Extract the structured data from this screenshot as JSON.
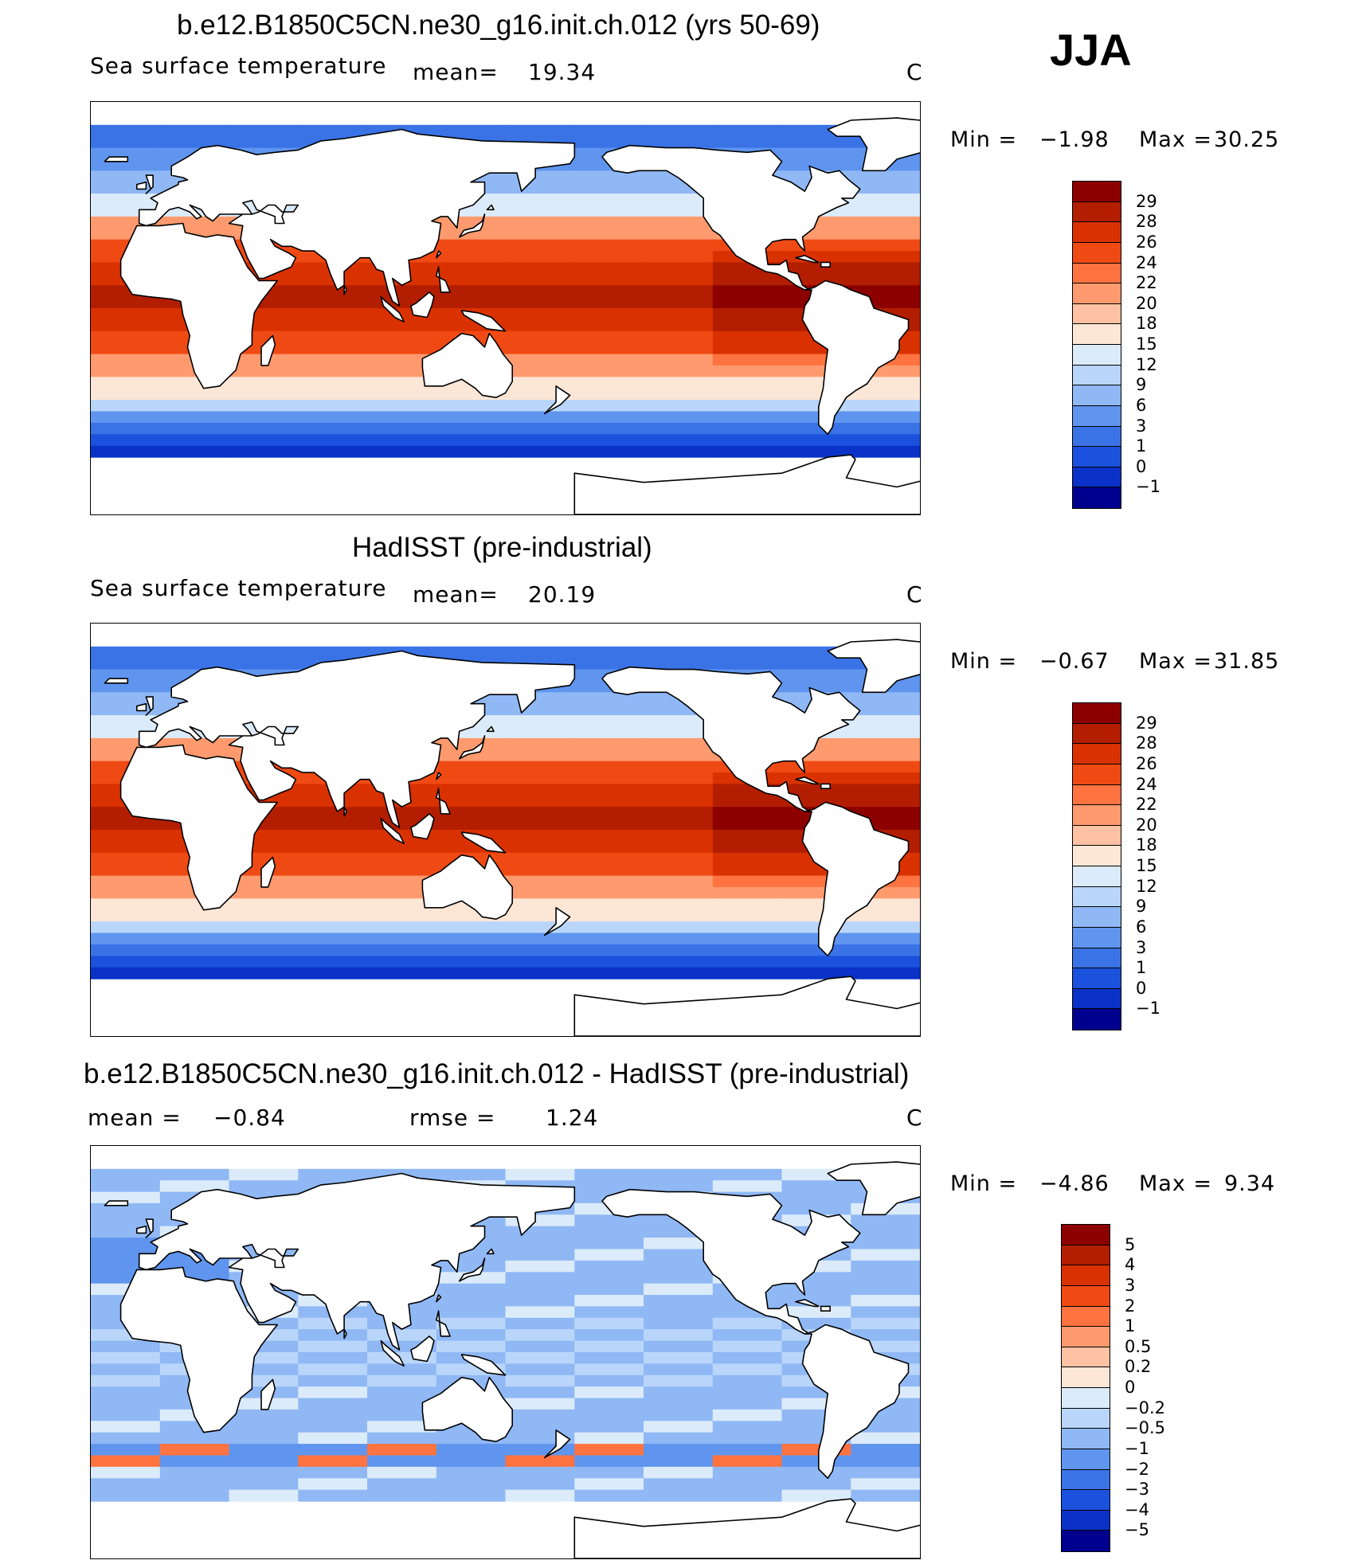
{
  "season": "JJA",
  "panels": [
    {
      "id": "model",
      "title": "b.e12.B1850C5CN.ne30_g16.init.ch.012 (yrs 50-69)",
      "variable": "Sea surface temperature",
      "mean_label": "mean=",
      "mean": "19.34",
      "units": "C",
      "minmax": {
        "min_label": "Min =",
        "min": "−1.98",
        "max_label": "Max =",
        "max": "30.25"
      },
      "colorbar": {
        "labels": [
          "29",
          "28",
          "26",
          "24",
          "22",
          "20",
          "18",
          "15",
          "12",
          "9",
          "6",
          "3",
          "1",
          "0",
          "−1"
        ],
        "colors": [
          "#8c0000",
          "#b31e00",
          "#d93200",
          "#f04a14",
          "#ff7340",
          "#ff9a6e",
          "#ffc1a3",
          "#fce6d6",
          "#dcebf9",
          "#b9d6fa",
          "#8fb8f5",
          "#5f95ee",
          "#3a73e6",
          "#1a52dd",
          "#0a32c8",
          "#00008f"
        ]
      }
    },
    {
      "id": "obs",
      "title": "HadISST (pre-industrial)",
      "variable": "Sea surface temperature",
      "mean_label": "mean=",
      "mean": "20.19",
      "units": "C",
      "minmax": {
        "min_label": "Min =",
        "min": "−0.67",
        "max_label": "Max =",
        "max": "31.85"
      },
      "colorbar": {
        "labels": [
          "29",
          "28",
          "26",
          "24",
          "22",
          "20",
          "18",
          "15",
          "12",
          "9",
          "6",
          "3",
          "1",
          "0",
          "−1"
        ],
        "colors": [
          "#8c0000",
          "#b31e00",
          "#d93200",
          "#f04a14",
          "#ff7340",
          "#ff9a6e",
          "#ffc1a3",
          "#fce6d6",
          "#dcebf9",
          "#b9d6fa",
          "#8fb8f5",
          "#5f95ee",
          "#3a73e6",
          "#1a52dd",
          "#0a32c8",
          "#00008f"
        ]
      }
    },
    {
      "id": "diff",
      "title": "b.e12.B1850C5CN.ne30_g16.init.ch.012 - HadISST (pre-industrial)",
      "mean_label": "mean =",
      "mean": "−0.84",
      "rmse_label": "rmse =",
      "rmse": "1.24",
      "units": "C",
      "minmax": {
        "min_label": "Min =",
        "min": "−4.86",
        "max_label": "Max =",
        "max": "9.34"
      },
      "colorbar": {
        "labels": [
          "5",
          "4",
          "3",
          "2",
          "1",
          "0.5",
          "0.2",
          "0",
          "−0.2",
          "−0.5",
          "−1",
          "−2",
          "−3",
          "−4",
          "−5"
        ],
        "colors": [
          "#8c0000",
          "#b31e00",
          "#d93200",
          "#f04a14",
          "#ff7340",
          "#ff9a6e",
          "#ffc1a3",
          "#fce6d6",
          "#dcebf9",
          "#b9d6fa",
          "#8fb8f5",
          "#5f95ee",
          "#3a73e6",
          "#1a52dd",
          "#0a32c8",
          "#00008f"
        ]
      }
    }
  ]
}
